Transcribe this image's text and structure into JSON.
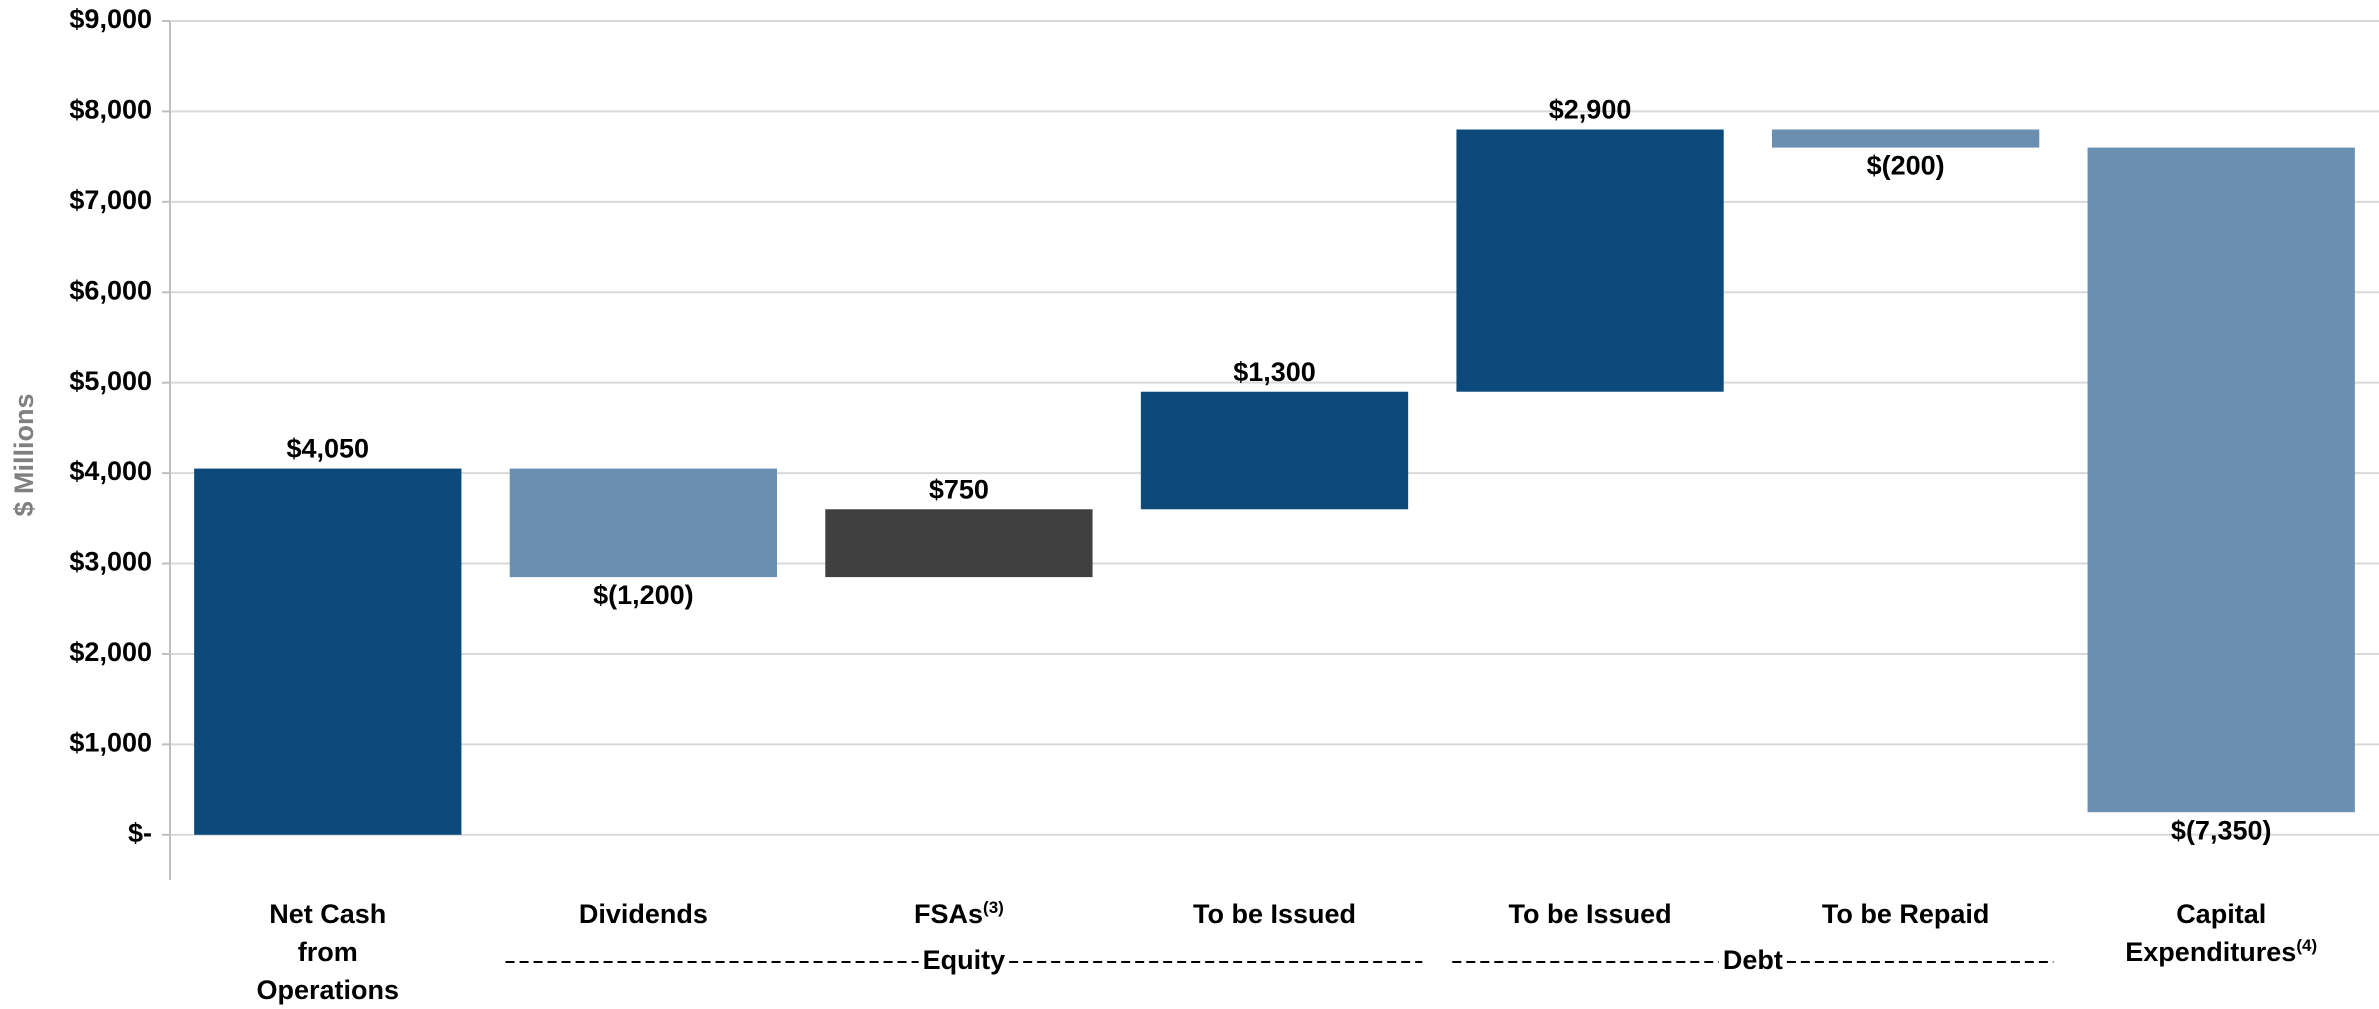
{
  "chart_data": {
    "type": "waterfall",
    "y_label": "$ Millions",
    "categories": [
      "Net Cash\nfrom\nOperations",
      "Dividends",
      "FSAs",
      "To be Issued",
      "To be Issued",
      "To be Repaid",
      "Capital\nExpenditures"
    ],
    "category_notes": [
      null,
      null,
      "(3)",
      null,
      null,
      null,
      "(4)"
    ],
    "values": [
      4050,
      -1200,
      750,
      1300,
      2900,
      -200,
      -7350
    ],
    "value_labels": [
      "$4,050",
      "$(1,200)",
      "$750",
      "$1,300",
      "$2,900",
      "$(200)",
      "$(7,350)"
    ],
    "colors": [
      "#0d4a7c",
      "#6a8fb0",
      "#404040",
      "#0d4a7c",
      "#0d4a7c",
      "#6a8fb0",
      "#6a8fb0"
    ],
    "groups": [
      "Equity",
      "Debt"
    ],
    "ylim": [
      -500,
      9000
    ],
    "yticks": [
      {
        "value": 0,
        "label": "$-"
      },
      {
        "value": 1000,
        "label": "$1,000"
      },
      {
        "value": 2000,
        "label": "$2,000"
      },
      {
        "value": 3000,
        "label": "$3,000"
      },
      {
        "value": 4000,
        "label": "$4,000"
      },
      {
        "value": 5000,
        "label": "$5,000"
      },
      {
        "value": 6000,
        "label": "$6,000"
      },
      {
        "value": 7000,
        "label": "$7,000"
      },
      {
        "value": 8000,
        "label": "$8,000"
      },
      {
        "value": 9000,
        "label": "$9,000"
      }
    ],
    "grid": true
  }
}
